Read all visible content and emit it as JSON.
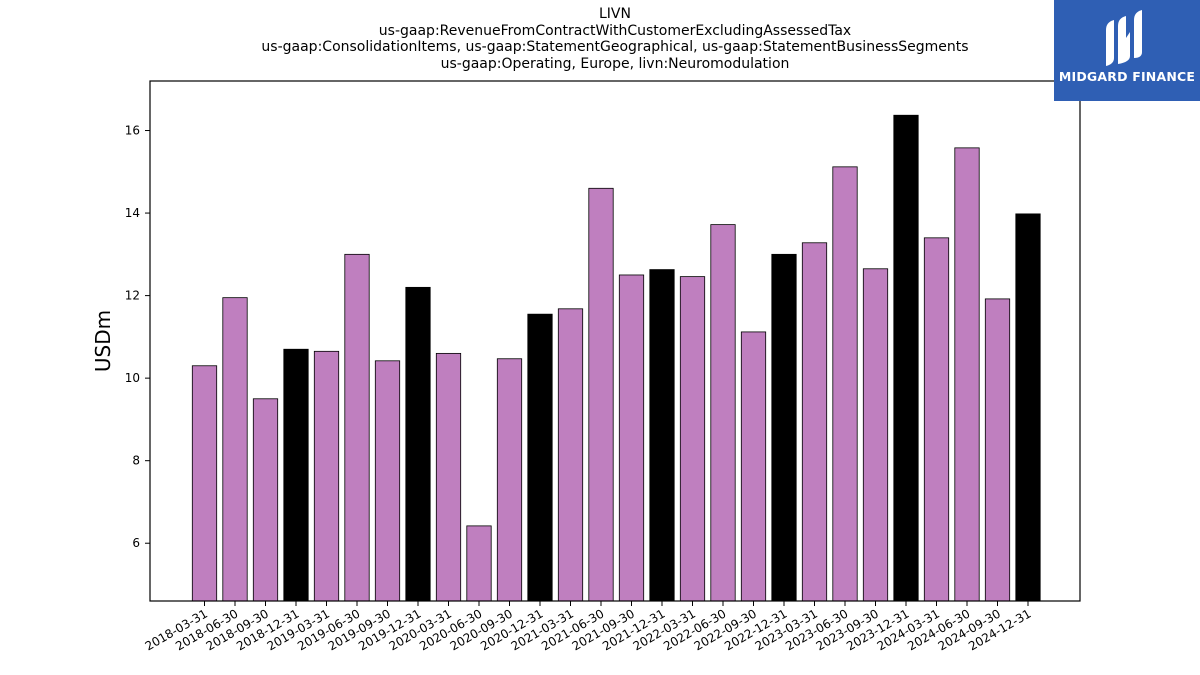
{
  "chart_data": {
    "type": "bar",
    "title_lines": [
      "LIVN",
      "us-gaap:RevenueFromContractWithCustomerExcludingAssessedTax",
      "us-gaap:ConsolidationItems, us-gaap:StatementGeographical, us-gaap:StatementBusinessSegments",
      "us-gaap:Operating, Europe, livn:Neuromodulation"
    ],
    "ylabel": "USDm",
    "xlabel": "",
    "ylim": [
      4.6,
      17.2
    ],
    "yticks": [
      6,
      8,
      10,
      12,
      14,
      16
    ],
    "grid": false,
    "colors": {
      "quarter": "#bf7fbf",
      "year_end": "#000000",
      "edge": "#000000"
    },
    "categories": [
      "2018-03-31",
      "2018-06-30",
      "2018-09-30",
      "2018-12-31",
      "2019-03-31",
      "2019-06-30",
      "2019-09-30",
      "2019-12-31",
      "2020-03-31",
      "2020-06-30",
      "2020-09-30",
      "2020-12-31",
      "2021-03-31",
      "2021-06-30",
      "2021-09-30",
      "2021-12-31",
      "2022-03-31",
      "2022-06-30",
      "2022-09-30",
      "2022-12-31",
      "2023-03-31",
      "2023-06-30",
      "2023-09-30",
      "2023-12-31",
      "2024-03-31",
      "2024-06-30",
      "2024-09-30",
      "2024-12-31"
    ],
    "values": [
      10.3,
      11.95,
      9.5,
      10.7,
      10.65,
      13.0,
      10.42,
      12.2,
      10.6,
      6.42,
      10.47,
      11.55,
      11.68,
      14.6,
      12.5,
      12.63,
      12.46,
      13.72,
      11.12,
      13.0,
      13.28,
      15.12,
      12.65,
      16.37,
      13.4,
      15.58,
      11.92,
      13.98
    ],
    "year_end": [
      false,
      false,
      false,
      true,
      false,
      false,
      false,
      true,
      false,
      false,
      false,
      true,
      false,
      false,
      false,
      true,
      false,
      false,
      false,
      true,
      false,
      false,
      false,
      true,
      false,
      false,
      false,
      true
    ]
  },
  "logo": {
    "text": "MIDGARD FINANCE",
    "icon": "midgard-logo-icon"
  }
}
